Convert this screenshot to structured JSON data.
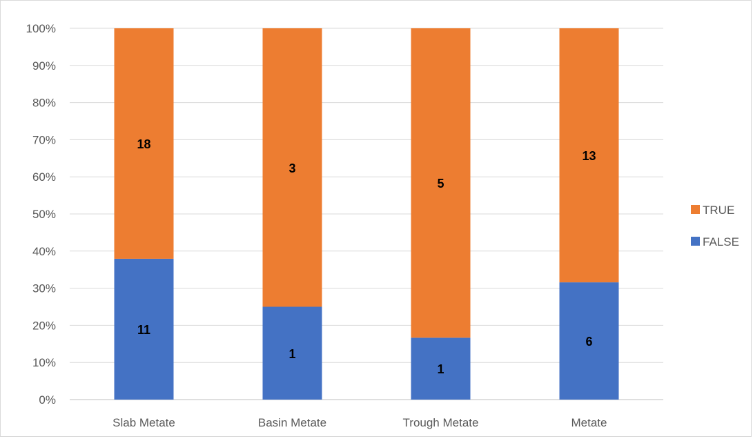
{
  "chart_data": {
    "type": "bar",
    "stacking": "percent",
    "categories": [
      "Slab Metate",
      "Basin Metate",
      "Trough Metate",
      "Metate"
    ],
    "series": [
      {
        "name": "FALSE",
        "values": [
          11,
          1,
          1,
          6
        ],
        "color": "#4472C4"
      },
      {
        "name": "TRUE",
        "values": [
          18,
          3,
          5,
          13
        ],
        "color": "#ED7D31"
      }
    ],
    "ylim": [
      0,
      100
    ],
    "y_ticks": [
      "0%",
      "10%",
      "20%",
      "30%",
      "40%",
      "50%",
      "60%",
      "70%",
      "80%",
      "90%",
      "100%"
    ],
    "legend_order": [
      "TRUE",
      "FALSE"
    ],
    "legend_position": "right",
    "grid": true,
    "gridline_color": "#d9d9d9",
    "axis_line_color": "#bfbfbf"
  }
}
